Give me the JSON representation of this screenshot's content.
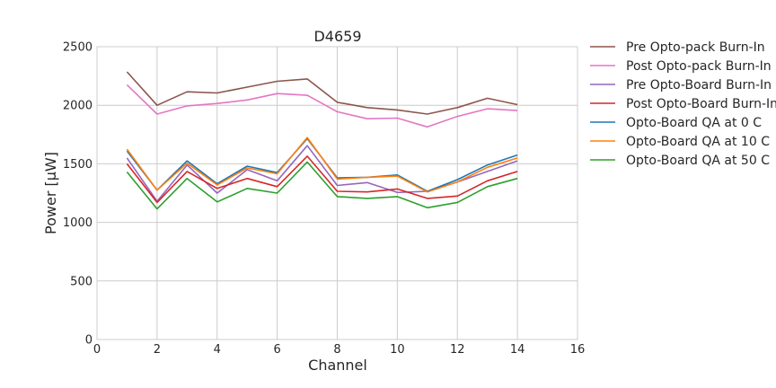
{
  "chart_data": {
    "type": "line",
    "title": "D4659",
    "xlabel": "Channel",
    "ylabel": "Power [μW]",
    "xlim": [
      0,
      16
    ],
    "ylim": [
      0,
      2500
    ],
    "xticks": [
      0,
      2,
      4,
      6,
      8,
      10,
      12,
      14,
      16
    ],
    "yticks": [
      0,
      500,
      1000,
      1500,
      2000,
      2500
    ],
    "grid": true,
    "legend_position": "outside-right",
    "x": [
      1,
      2,
      3,
      4,
      5,
      6,
      7,
      8,
      9,
      10,
      11,
      12,
      13,
      14
    ],
    "series": [
      {
        "name": "Pre Opto-pack Burn-In",
        "color": "#8c564b",
        "values": [
          2285,
          2000,
          2115,
          2105,
          2155,
          2205,
          2225,
          2025,
          1980,
          1960,
          1925,
          1980,
          2060,
          2005
        ]
      },
      {
        "name": "Post Opto-pack Burn-In",
        "color": "#e377c2",
        "values": [
          2175,
          1925,
          1995,
          2015,
          2045,
          2100,
          2085,
          1945,
          1885,
          1890,
          1815,
          1905,
          1970,
          1955
        ]
      },
      {
        "name": "Pre Opto-Board Burn-In",
        "color": "#9467bd",
        "values": [
          1550,
          1180,
          1490,
          1250,
          1450,
          1355,
          1655,
          1315,
          1340,
          1255,
          1265,
          1345,
          1435,
          1525
        ]
      },
      {
        "name": "Post Opto-Board Burn-In",
        "color": "#d62728",
        "values": [
          1500,
          1170,
          1435,
          1290,
          1375,
          1305,
          1565,
          1265,
          1260,
          1285,
          1205,
          1225,
          1355,
          1435
        ]
      },
      {
        "name": "Opto-Board QA at 0 C",
        "color": "#1f77b4",
        "values": [
          1610,
          1275,
          1525,
          1330,
          1480,
          1425,
          1715,
          1380,
          1385,
          1405,
          1265,
          1365,
          1490,
          1575
        ]
      },
      {
        "name": "Opto-Board QA at 10 C",
        "color": "#ff7f0e",
        "values": [
          1625,
          1275,
          1505,
          1320,
          1465,
          1415,
          1725,
          1370,
          1385,
          1395,
          1260,
          1345,
          1470,
          1550
        ]
      },
      {
        "name": "Opto-Board QA at 50 C",
        "color": "#2ca02c",
        "values": [
          1430,
          1115,
          1375,
          1175,
          1290,
          1250,
          1515,
          1220,
          1205,
          1220,
          1125,
          1170,
          1305,
          1375
        ]
      }
    ]
  }
}
